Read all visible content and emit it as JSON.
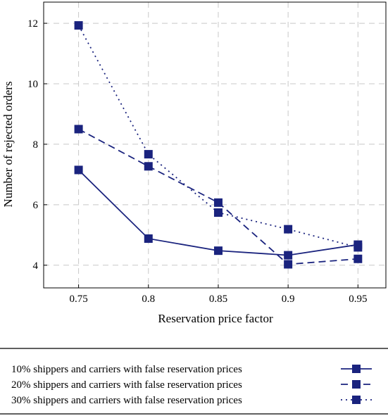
{
  "chart_data": {
    "type": "line",
    "xlabel": "Reservation price factor",
    "ylabel": "Number of rejected orders",
    "x": [
      0.75,
      0.8,
      0.85,
      0.9,
      0.95
    ],
    "x_tick_labels": [
      "0.75",
      "0.8",
      "0.85",
      "0.9",
      "0.95"
    ],
    "xlim": [
      0.725,
      0.97
    ],
    "ylim": [
      3.25,
      12.7
    ],
    "y_ticks": [
      4,
      6,
      8,
      10,
      12
    ],
    "grid": true,
    "legend_position": "bottom",
    "series": [
      {
        "name": "10% shippers and carriers with false reservation prices",
        "values": [
          7.15,
          4.88,
          4.48,
          4.33,
          4.68
        ],
        "dash": "solid",
        "color": "#1a237e"
      },
      {
        "name": "20% shippers and carriers with false reservation prices",
        "values": [
          8.5,
          7.27,
          6.07,
          4.03,
          4.21
        ],
        "dash": "dashed",
        "color": "#1a237e"
      },
      {
        "name": "30% shippers and carriers with false reservation prices",
        "values": [
          11.93,
          7.67,
          5.74,
          5.19,
          4.59
        ],
        "dash": "dotted",
        "color": "#1a237e"
      }
    ]
  }
}
